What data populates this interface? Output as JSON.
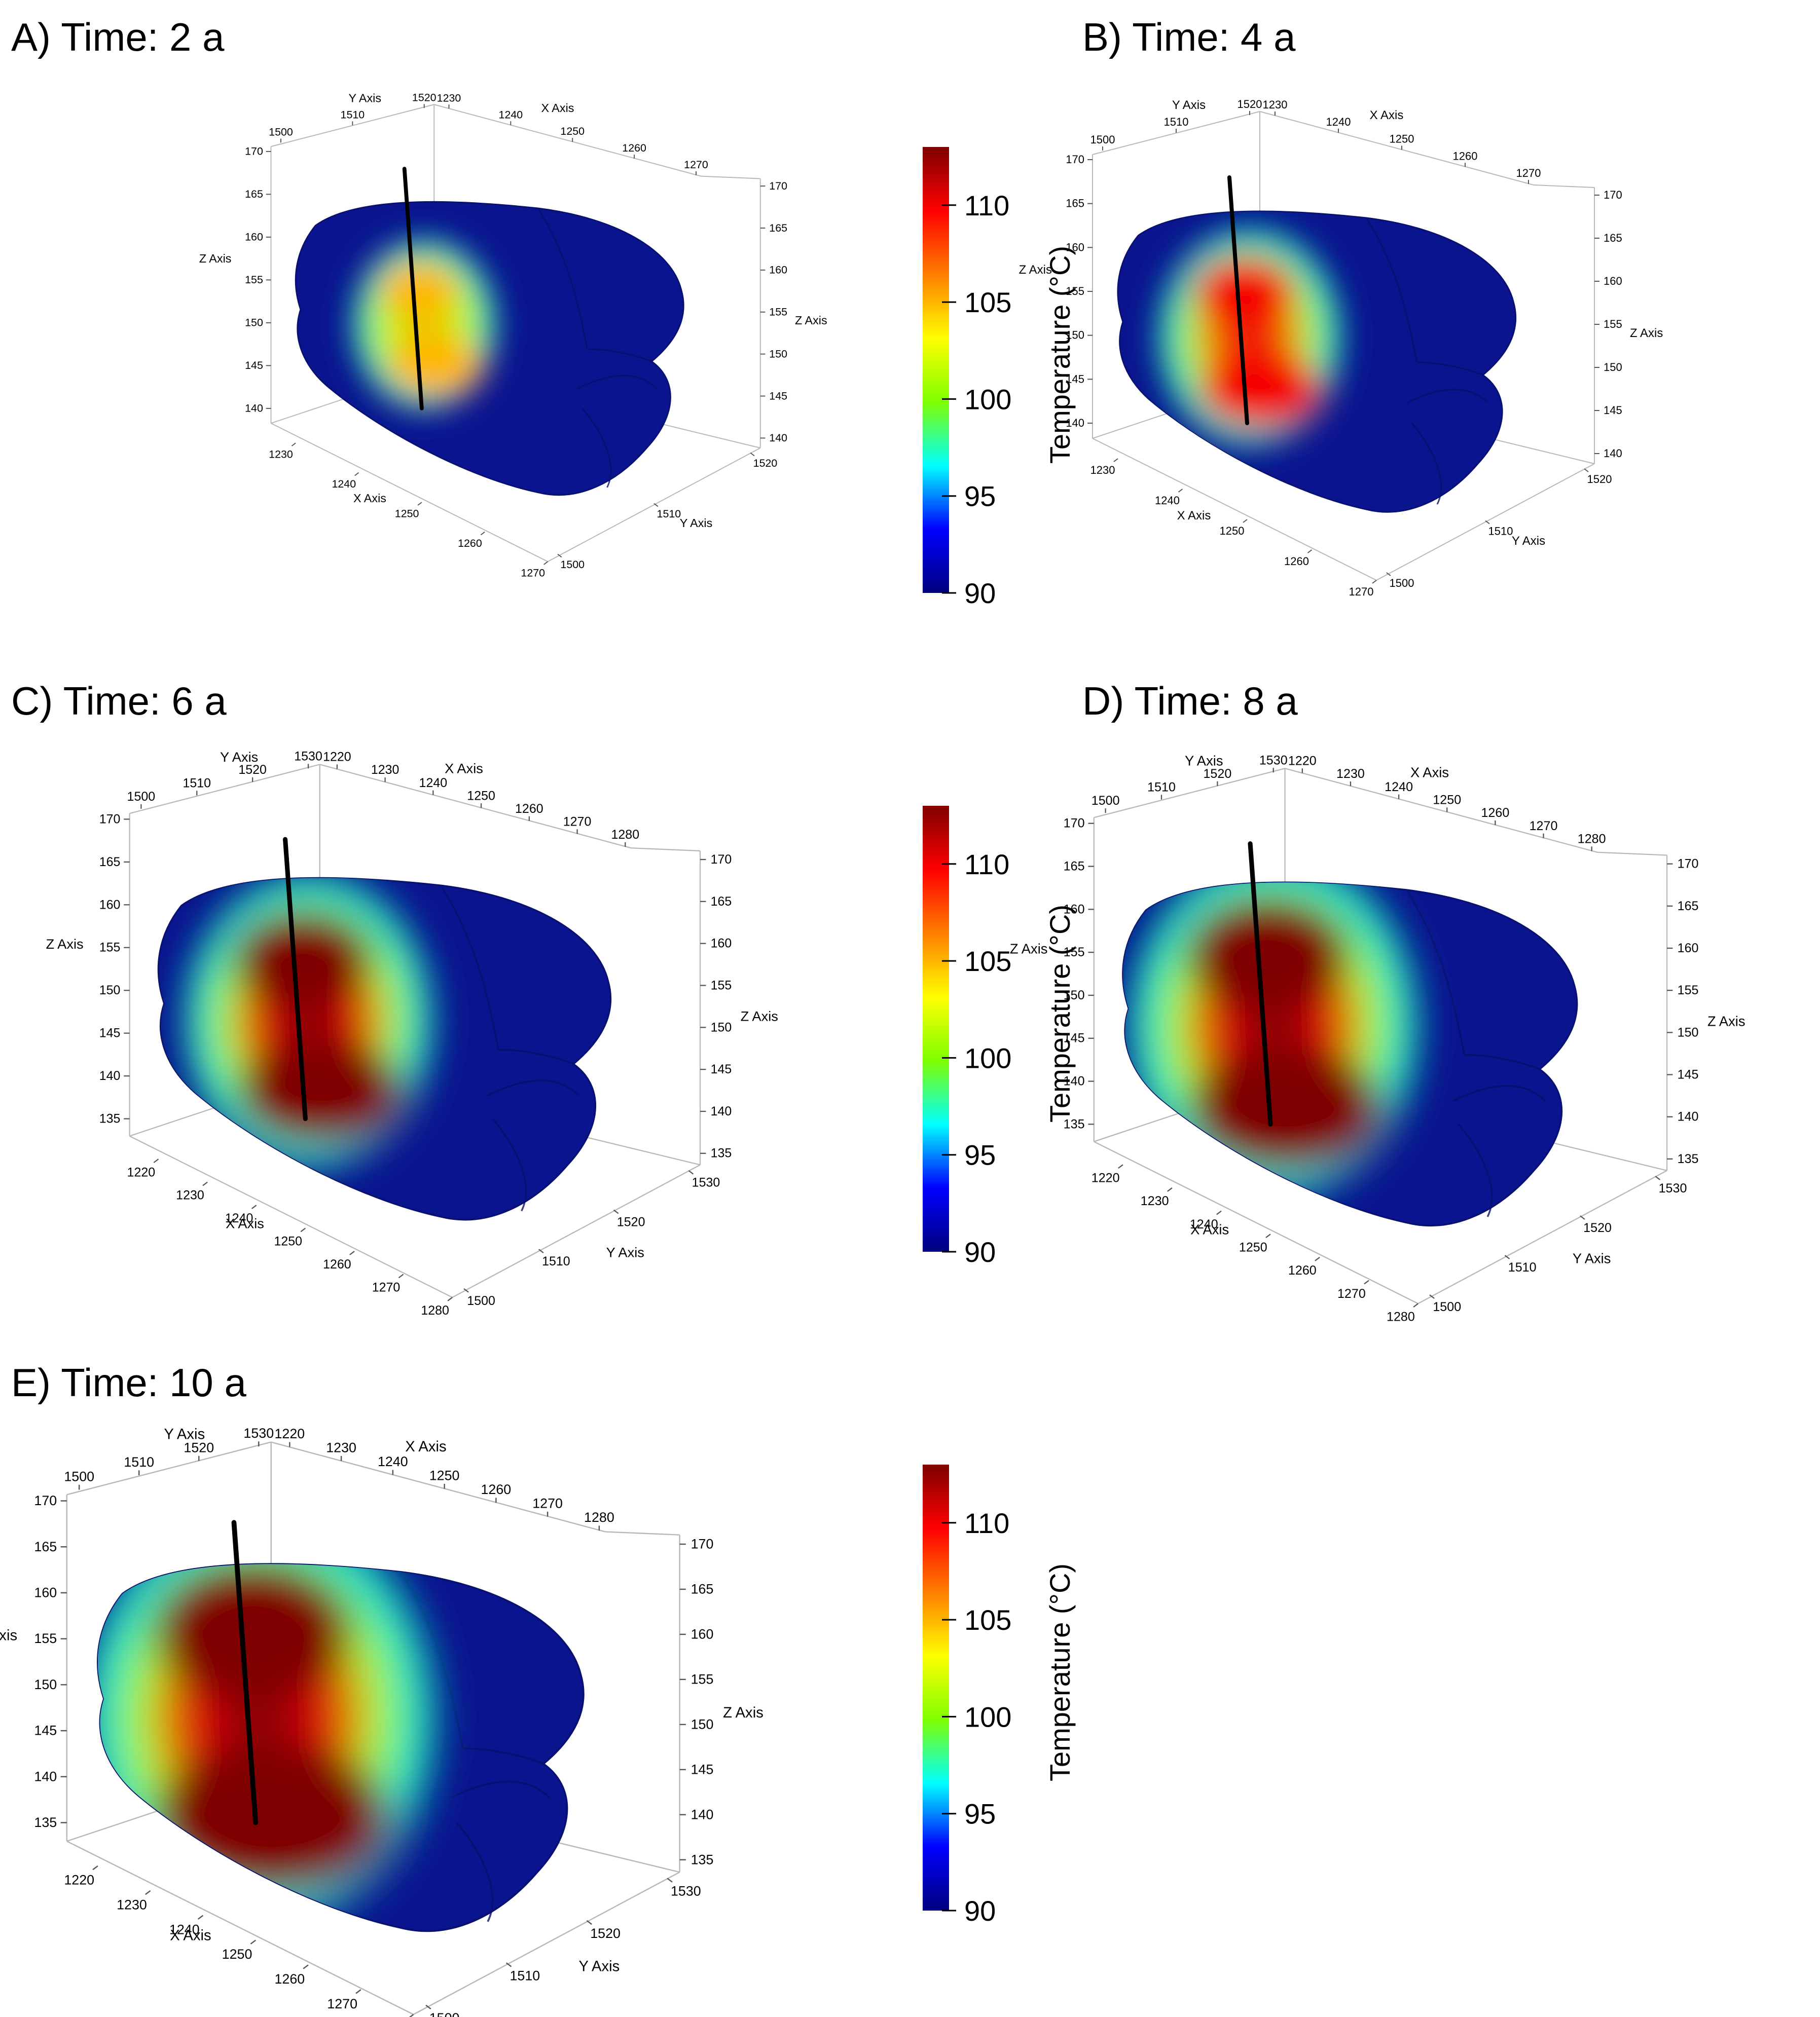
{
  "chart_data": [
    {
      "type": "heatmap",
      "title": "A) Time: 2 a",
      "time_years": 2,
      "axes": {
        "x_label": "X Axis",
        "x_ticks": [
          "1230",
          "1240",
          "1250",
          "1260",
          "1270"
        ],
        "y_label": "Y Axis",
        "y_ticks": [
          "1500",
          "1510",
          "1520"
        ],
        "z_label": "Z Axis",
        "z_ticks": [
          "140",
          "145",
          "150",
          "155",
          "160",
          "165",
          "170"
        ]
      },
      "max_temperature_c": 105
    },
    {
      "type": "heatmap",
      "title": "B) Time: 4 a",
      "time_years": 4,
      "axes": {
        "x_label": "X Axis",
        "x_ticks": [
          "1230",
          "1240",
          "1250",
          "1260",
          "1270"
        ],
        "y_label": "Y Axis",
        "y_ticks": [
          "1500",
          "1510",
          "1520"
        ],
        "z_label": "Z Axis",
        "z_ticks": [
          "140",
          "145",
          "150",
          "155",
          "160",
          "165",
          "170"
        ]
      },
      "max_temperature_c": 110
    },
    {
      "type": "heatmap",
      "title": "C) Time: 6 a",
      "time_years": 6,
      "axes": {
        "x_label": "X Axis",
        "x_ticks": [
          "1220",
          "1230",
          "1240",
          "1250",
          "1260",
          "1270",
          "1280"
        ],
        "y_label": "Y Axis",
        "y_ticks": [
          "1500",
          "1510",
          "1520",
          "1530"
        ],
        "z_label": "Z Axis",
        "z_ticks": [
          "135",
          "140",
          "145",
          "150",
          "155",
          "160",
          "165",
          "170"
        ]
      },
      "max_temperature_c": 113
    },
    {
      "type": "heatmap",
      "title": "D) Time: 8 a",
      "time_years": 8,
      "axes": {
        "x_label": "X Axis",
        "x_ticks": [
          "1220",
          "1230",
          "1240",
          "1250",
          "1260",
          "1270",
          "1280"
        ],
        "y_label": "Y Axis",
        "y_ticks": [
          "1500",
          "1510",
          "1520",
          "1530"
        ],
        "z_label": "Z Axis",
        "z_ticks": [
          "135",
          "140",
          "145",
          "150",
          "155",
          "160",
          "165",
          "170"
        ]
      },
      "max_temperature_c": 113
    },
    {
      "type": "heatmap",
      "title": "E) Time: 10 a",
      "time_years": 10,
      "axes": {
        "x_label": "X Axis",
        "x_ticks": [
          "1220",
          "1230",
          "1240",
          "1250",
          "1260",
          "1270",
          "1280"
        ],
        "y_label": "Y Axis",
        "y_ticks": [
          "1500",
          "1510",
          "1520",
          "1530"
        ],
        "z_label": "Z Axis",
        "z_ticks": [
          "135",
          "140",
          "145",
          "150",
          "155",
          "160",
          "165",
          "170"
        ]
      },
      "max_temperature_c": 113
    }
  ],
  "colorbar": {
    "label": "Temperature (°C)",
    "min": 90,
    "max": 113,
    "ticks": [
      "90",
      "95",
      "100",
      "105",
      "110"
    ],
    "tick_values": [
      90,
      95,
      100,
      105,
      110
    ],
    "colors": [
      "#00007f",
      "#0000ff",
      "#00ffff",
      "#7fff00",
      "#ffff00",
      "#ff7f00",
      "#ff0000",
      "#7f0000"
    ]
  }
}
